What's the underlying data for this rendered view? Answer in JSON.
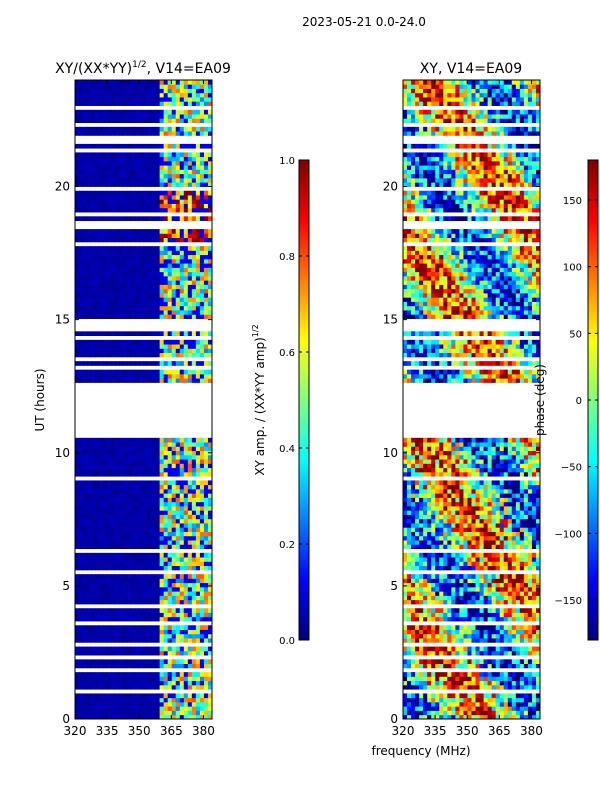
{
  "figure": {
    "suptitle": "2023-05-21 0.0-24.0",
    "xlabel_shared": "frequency (MHz)"
  },
  "colors": {
    "jet": [
      "#00007f",
      "#0000ff",
      "#007fff",
      "#00ffff",
      "#7fff7f",
      "#ffff00",
      "#ff7f00",
      "#ff0000",
      "#7f0000"
    ],
    "background": "#00007f",
    "gap": "#ffffff"
  },
  "chart_data": [
    {
      "type": "heatmap",
      "title": "XY/(XX*YY)",
      "title_sup": "1/2",
      "title_suffix": ", V14=EA09",
      "xlabel": "",
      "ylabel": "UT (hours)",
      "xlim": [
        320,
        384
      ],
      "ylim": [
        0,
        24
      ],
      "xticks": [
        "320",
        "335",
        "350",
        "365",
        "380"
      ],
      "xtick_values": [
        320,
        335,
        350,
        365,
        380
      ],
      "yticks": [
        "0",
        "5",
        "10",
        "15",
        "20"
      ],
      "ytick_values": [
        0,
        5,
        10,
        15,
        20
      ],
      "value_range": [
        0.0,
        1.0
      ],
      "active_band_mhz": [
        360,
        384
      ],
      "colorbar": {
        "label": "XY amp. / (XX*YY amp)",
        "label_sup": "1/2",
        "ticks": [
          "0.0",
          "0.2",
          "0.4",
          "0.6",
          "0.8",
          "1.0"
        ],
        "tick_values": [
          0.0,
          0.2,
          0.4,
          0.6,
          0.8,
          1.0
        ],
        "range": [
          0.0,
          1.0
        ]
      }
    },
    {
      "type": "heatmap",
      "title": "XY, V14=EA09",
      "xlabel": "frequency (MHz)",
      "ylabel": "",
      "xlim": [
        320,
        384
      ],
      "ylim": [
        0,
        24
      ],
      "xticks": [
        "320",
        "335",
        "350",
        "365",
        "380"
      ],
      "xtick_values": [
        320,
        335,
        350,
        365,
        380
      ],
      "yticks": [
        "0",
        "5",
        "10",
        "15",
        "20"
      ],
      "ytick_values": [
        0,
        5,
        10,
        15,
        20
      ],
      "value_range": [
        -180,
        180
      ],
      "colorbar": {
        "label": "phase (deg)",
        "ticks": [
          "−150",
          "−100",
          "−50",
          "0",
          "50",
          "100",
          "150"
        ],
        "tick_values": [
          -150,
          -100,
          -50,
          0,
          50,
          100,
          150
        ],
        "range": [
          -180,
          180
        ]
      }
    }
  ],
  "gaps_hours": [
    [
      0.95,
      1.05
    ],
    [
      1.3,
      1.35
    ],
    [
      1.55,
      1.6
    ],
    [
      1.8,
      1.85
    ],
    [
      2.05,
      2.1
    ],
    [
      2.3,
      2.35
    ],
    [
      2.55,
      2.6
    ],
    [
      2.8,
      2.85
    ],
    [
      3.3,
      3.4
    ],
    [
      3.6,
      3.7
    ],
    [
      4.2,
      4.25
    ],
    [
      4.5,
      4.55
    ],
    [
      4.75,
      4.8
    ],
    [
      5.05,
      5.1
    ],
    [
      5.5,
      5.6
    ],
    [
      5.85,
      6.0
    ],
    [
      6.2,
      6.4
    ],
    [
      6.65,
      6.7
    ],
    [
      7.3,
      7.35
    ],
    [
      7.65,
      7.7
    ],
    [
      8.1,
      8.15
    ],
    [
      8.6,
      8.65
    ],
    [
      9.0,
      9.05
    ],
    [
      9.6,
      9.65
    ],
    [
      10.1,
      10.15
    ],
    [
      10.6,
      10.7
    ],
    [
      10.8,
      12.6
    ],
    [
      12.9,
      12.95
    ],
    [
      13.2,
      13.25
    ],
    [
      13.5,
      13.55
    ],
    [
      13.85,
      13.9
    ],
    [
      14.3,
      14.35
    ],
    [
      14.6,
      15.0
    ],
    [
      15.2,
      15.25
    ],
    [
      15.45,
      15.5
    ],
    [
      15.65,
      15.7
    ],
    [
      16.0,
      16.05
    ],
    [
      16.5,
      16.55
    ],
    [
      17.1,
      17.15
    ],
    [
      17.45,
      17.5
    ],
    [
      17.75,
      18.0
    ],
    [
      18.2,
      18.25
    ],
    [
      18.45,
      18.7
    ],
    [
      18.95,
      19.0
    ],
    [
      19.3,
      19.35
    ],
    [
      19.85,
      20.0
    ],
    [
      20.75,
      20.8
    ],
    [
      21.3,
      21.4
    ],
    [
      21.65,
      21.95
    ],
    [
      22.3,
      22.35
    ],
    [
      22.65,
      22.7
    ],
    [
      22.95,
      23.0
    ],
    [
      23.15,
      23.2
    ],
    [
      23.3,
      23.35
    ],
    [
      23.55,
      23.6
    ]
  ]
}
